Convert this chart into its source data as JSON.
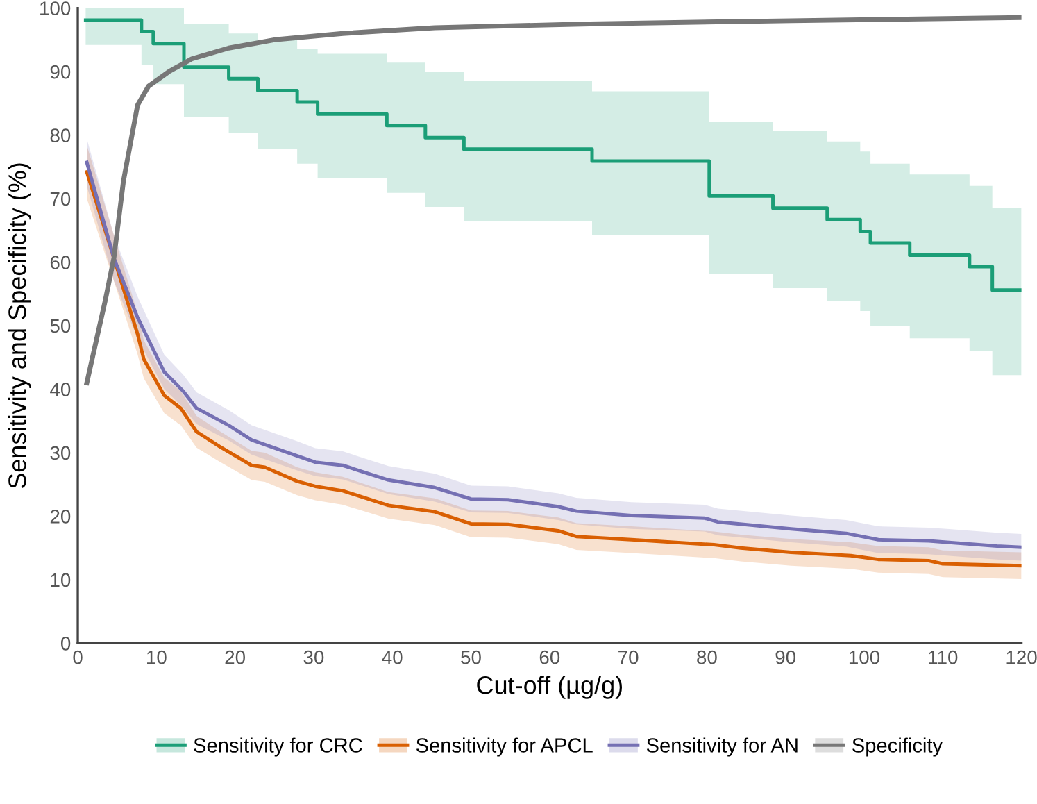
{
  "chart_data": {
    "type": "line",
    "xlabel": "Cut-off (µg/g)",
    "ylabel": "Sensitivity and Specificity (%)",
    "xlim": [
      0,
      120
    ],
    "ylim": [
      0,
      100
    ],
    "xticks": [
      0,
      10,
      20,
      30,
      40,
      50,
      60,
      70,
      80,
      90,
      100,
      110,
      120
    ],
    "yticks": [
      0,
      10,
      20,
      30,
      40,
      50,
      60,
      70,
      80,
      90,
      100
    ],
    "grid": false,
    "legend": "bottom",
    "series": [
      {
        "name": "Sensitivity for CRC",
        "type": "step",
        "color": "#1b9e77",
        "x": [
          1,
          8.1,
          9.6,
          13.5,
          19.2,
          22.9,
          27.9,
          30.5,
          39.3,
          44.2,
          49.1,
          65.4,
          80.3,
          88.4,
          95.3,
          99.5,
          100.8,
          105.8,
          113.4,
          116.3,
          120
        ],
        "values": [
          98.1,
          96.3,
          94.4,
          90.7,
          88.9,
          87.0,
          85.2,
          83.3,
          81.5,
          79.6,
          77.8,
          75.9,
          70.4,
          68.5,
          66.7,
          64.8,
          63.0,
          61.1,
          59.3,
          55.6,
          55.6
        ],
        "lower": [
          94.2,
          91,
          88,
          82.8,
          80.3,
          77.8,
          75.5,
          73.2,
          70.9,
          68.7,
          66.5,
          64.3,
          58.1,
          55.9,
          53.9,
          52.3,
          49.9,
          48,
          46,
          42.2,
          42.2
        ],
        "upper": [
          100,
          100,
          100,
          97.5,
          96,
          95,
          93.5,
          92.8,
          91.4,
          90,
          88.5,
          86.9,
          82.1,
          80.7,
          79,
          77.4,
          75.5,
          73.8,
          72,
          68.5,
          68.5
        ]
      },
      {
        "name": "Sensitivity for APCL",
        "color": "#d95f02",
        "x": [
          1.15,
          4.6,
          7.6,
          8.4,
          11,
          13.1,
          15.1,
          18,
          22.1,
          23.8,
          27.9,
          30.2,
          33.7,
          39.5,
          45.4,
          50,
          54.7,
          61.1,
          63.4,
          70.4,
          80.9,
          84.3,
          90.7,
          98.3,
          101.8,
          108.2,
          110,
          120
        ],
        "values": [
          74.2,
          60.6,
          48.7,
          44.7,
          39,
          37,
          33.3,
          31,
          28,
          27.7,
          25.5,
          24.7,
          24,
          21.7,
          20.7,
          18.8,
          18.7,
          17.7,
          16.8,
          16.3,
          15.5,
          15,
          14.3,
          13.8,
          13.2,
          13,
          12.5,
          12.2
        ],
        "lower": [
          70,
          57,
          45.5,
          41.7,
          36.2,
          34.3,
          30.8,
          28.6,
          25.7,
          25.4,
          23.3,
          22.5,
          21.8,
          19.6,
          18.6,
          16.7,
          16.6,
          15.6,
          14.7,
          14.2,
          13.4,
          12.9,
          12.2,
          11.7,
          11.1,
          10.9,
          10.4,
          10.1
        ],
        "upper": [
          78.4,
          64.2,
          52,
          47.7,
          41.8,
          39.7,
          35.8,
          33.4,
          30.3,
          30,
          27.7,
          26.9,
          26.2,
          23.8,
          22.8,
          20.9,
          20.8,
          19.8,
          18.9,
          18.4,
          17.6,
          17.1,
          16.4,
          15.9,
          15.3,
          15.1,
          14.6,
          14.3
        ]
      },
      {
        "name": "Sensitivity for AN",
        "color": "#7570b3",
        "x": [
          1.15,
          4.6,
          7.6,
          11,
          13.4,
          15.1,
          19.2,
          22.1,
          27.9,
          30.2,
          33.7,
          39.5,
          45.4,
          50,
          54.7,
          61.1,
          63.4,
          70.4,
          79.7,
          81.4,
          90.7,
          97.7,
          101.8,
          108.2,
          110.5,
          116.9,
          120
        ],
        "values": [
          75.7,
          60.6,
          51.3,
          42.7,
          39.7,
          37,
          34.3,
          32,
          29.5,
          28.5,
          28,
          25.7,
          24.5,
          22.7,
          22.6,
          21.5,
          20.8,
          20.1,
          19.7,
          19.1,
          18,
          17.3,
          16.3,
          16.1,
          15.9,
          15.3,
          15.1
        ],
        "lower": [
          72,
          57,
          48,
          40,
          37.1,
          34.5,
          31.9,
          29.7,
          27.2,
          26.3,
          25.8,
          23.5,
          22.3,
          20.6,
          20.5,
          19.4,
          18.7,
          18,
          17.6,
          17,
          15.9,
          15.2,
          14.2,
          14,
          13.8,
          13.2,
          13
        ],
        "upper": [
          79.4,
          64.2,
          54.6,
          45.4,
          42.3,
          39.5,
          36.7,
          34.3,
          31.8,
          30.7,
          30.2,
          27.9,
          26.7,
          24.8,
          24.7,
          23.6,
          22.9,
          22.2,
          21.8,
          21.2,
          20.1,
          19.4,
          18.4,
          18.2,
          18,
          17.4,
          17.2
        ]
      },
      {
        "name": "Specificity",
        "color": "#777777",
        "x": [
          1.15,
          3.5,
          4.6,
          5.8,
          7.6,
          9,
          11.6,
          14.5,
          19.2,
          25,
          33.7,
          45.4,
          65.1,
          90.7,
          120
        ],
        "values": [
          41,
          54,
          60.7,
          72.7,
          84.7,
          87.7,
          90,
          92,
          93.7,
          95,
          96,
          96.9,
          97.5,
          98,
          98.5
        ]
      }
    ]
  }
}
